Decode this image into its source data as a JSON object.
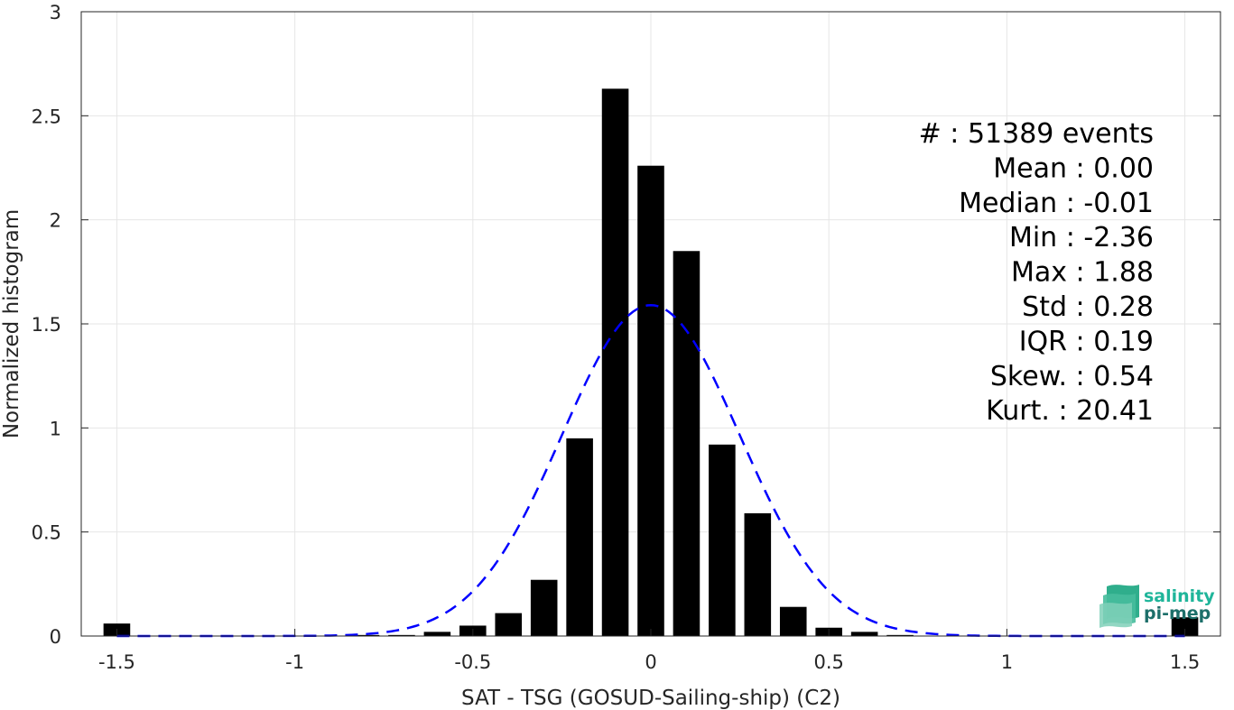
{
  "chart_data": {
    "type": "bar",
    "xlabel": "SAT - TSG (GOSUD-Sailing-ship) (C2)",
    "ylabel": "Normalized histogram",
    "xlim": [
      -1.6,
      1.6
    ],
    "ylim": [
      0,
      3
    ],
    "xticks": [
      "-1.5",
      "-1",
      "-0.5",
      "0",
      "0.5",
      "1",
      "1.5"
    ],
    "yticks": [
      "0",
      "0.5",
      "1",
      "1.5",
      "2",
      "2.5",
      "3"
    ],
    "grid": true,
    "bar_color": "#000000",
    "bins": [
      {
        "x": -1.5,
        "value": 0.06
      },
      {
        "x": -1.4,
        "value": 0.0
      },
      {
        "x": -1.3,
        "value": 0.0
      },
      {
        "x": -1.2,
        "value": 0.0
      },
      {
        "x": -1.1,
        "value": 0.0
      },
      {
        "x": -1.0,
        "value": 0.0
      },
      {
        "x": -0.9,
        "value": 0.0
      },
      {
        "x": -0.8,
        "value": 0.005
      },
      {
        "x": -0.7,
        "value": 0.005
      },
      {
        "x": -0.6,
        "value": 0.02
      },
      {
        "x": -0.5,
        "value": 0.05
      },
      {
        "x": -0.4,
        "value": 0.11
      },
      {
        "x": -0.3,
        "value": 0.27
      },
      {
        "x": -0.2,
        "value": 0.95
      },
      {
        "x": -0.1,
        "value": 2.63
      },
      {
        "x": 0.0,
        "value": 2.26
      },
      {
        "x": 0.1,
        "value": 1.85
      },
      {
        "x": 0.2,
        "value": 0.92
      },
      {
        "x": 0.3,
        "value": 0.59
      },
      {
        "x": 0.4,
        "value": 0.14
      },
      {
        "x": 0.5,
        "value": 0.04
      },
      {
        "x": 0.6,
        "value": 0.02
      },
      {
        "x": 0.7,
        "value": 0.005
      },
      {
        "x": 0.8,
        "value": 0.0
      },
      {
        "x": 0.9,
        "value": 0.0
      },
      {
        "x": 1.0,
        "value": 0.0
      },
      {
        "x": 1.1,
        "value": 0.0
      },
      {
        "x": 1.2,
        "value": 0.0
      },
      {
        "x": 1.3,
        "value": 0.0
      },
      {
        "x": 1.4,
        "value": 0.0
      },
      {
        "x": 1.5,
        "value": 0.09
      }
    ],
    "fit_curve": {
      "type": "gaussian",
      "color": "#0000ff",
      "style": "dashed",
      "mean": 0.0,
      "std": 0.25,
      "peak": 1.59
    },
    "stats": [
      {
        "label": "#  ",
        "value": ": 51389 events"
      },
      {
        "label": "Mean ",
        "value": ": 0.00"
      },
      {
        "label": "Median ",
        "value": ": -0.01"
      },
      {
        "label": "Min ",
        "value": ": -2.36"
      },
      {
        "label": "Max ",
        "value": ": 1.88"
      },
      {
        "label": "Std ",
        "value": ": 0.28"
      },
      {
        "label": "IQR ",
        "value": ": 0.19"
      },
      {
        "label": "Skew. ",
        "value": ": 0.54"
      },
      {
        "label": "Kurt. ",
        "value": ": 20.41"
      }
    ]
  },
  "logo": {
    "line1": "salinity",
    "line2": "pi-mep",
    "color1": "#1fb59a",
    "color2": "#1d6f6a"
  }
}
